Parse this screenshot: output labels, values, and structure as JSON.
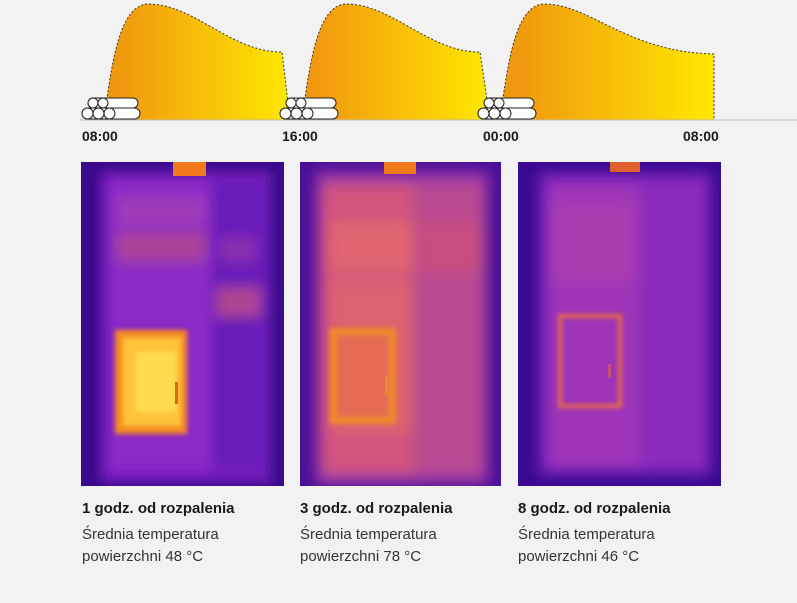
{
  "timeline": {
    "labels": [
      "08:00",
      "16:00",
      "00:00",
      "08:00"
    ],
    "colors": {
      "hot": "#f09a12",
      "warm": "#ffe800",
      "axis": "#bbbbbb"
    }
  },
  "panels": [
    {
      "title": "1 godz. od rozpalenia",
      "line1": "Średnia temperatura",
      "line2": "powierzchni 48 °C",
      "avg_temp_c": 48
    },
    {
      "title": "3 godz. od rozpalenia",
      "line1": "Średnia temperatura",
      "line2": "powierzchni 78 °C",
      "avg_temp_c": 78
    },
    {
      "title": "8 godz. od rozpalenia",
      "line1": "Średnia temperatura",
      "line2": "powierzchni 46 °C",
      "avg_temp_c": 46
    }
  ]
}
